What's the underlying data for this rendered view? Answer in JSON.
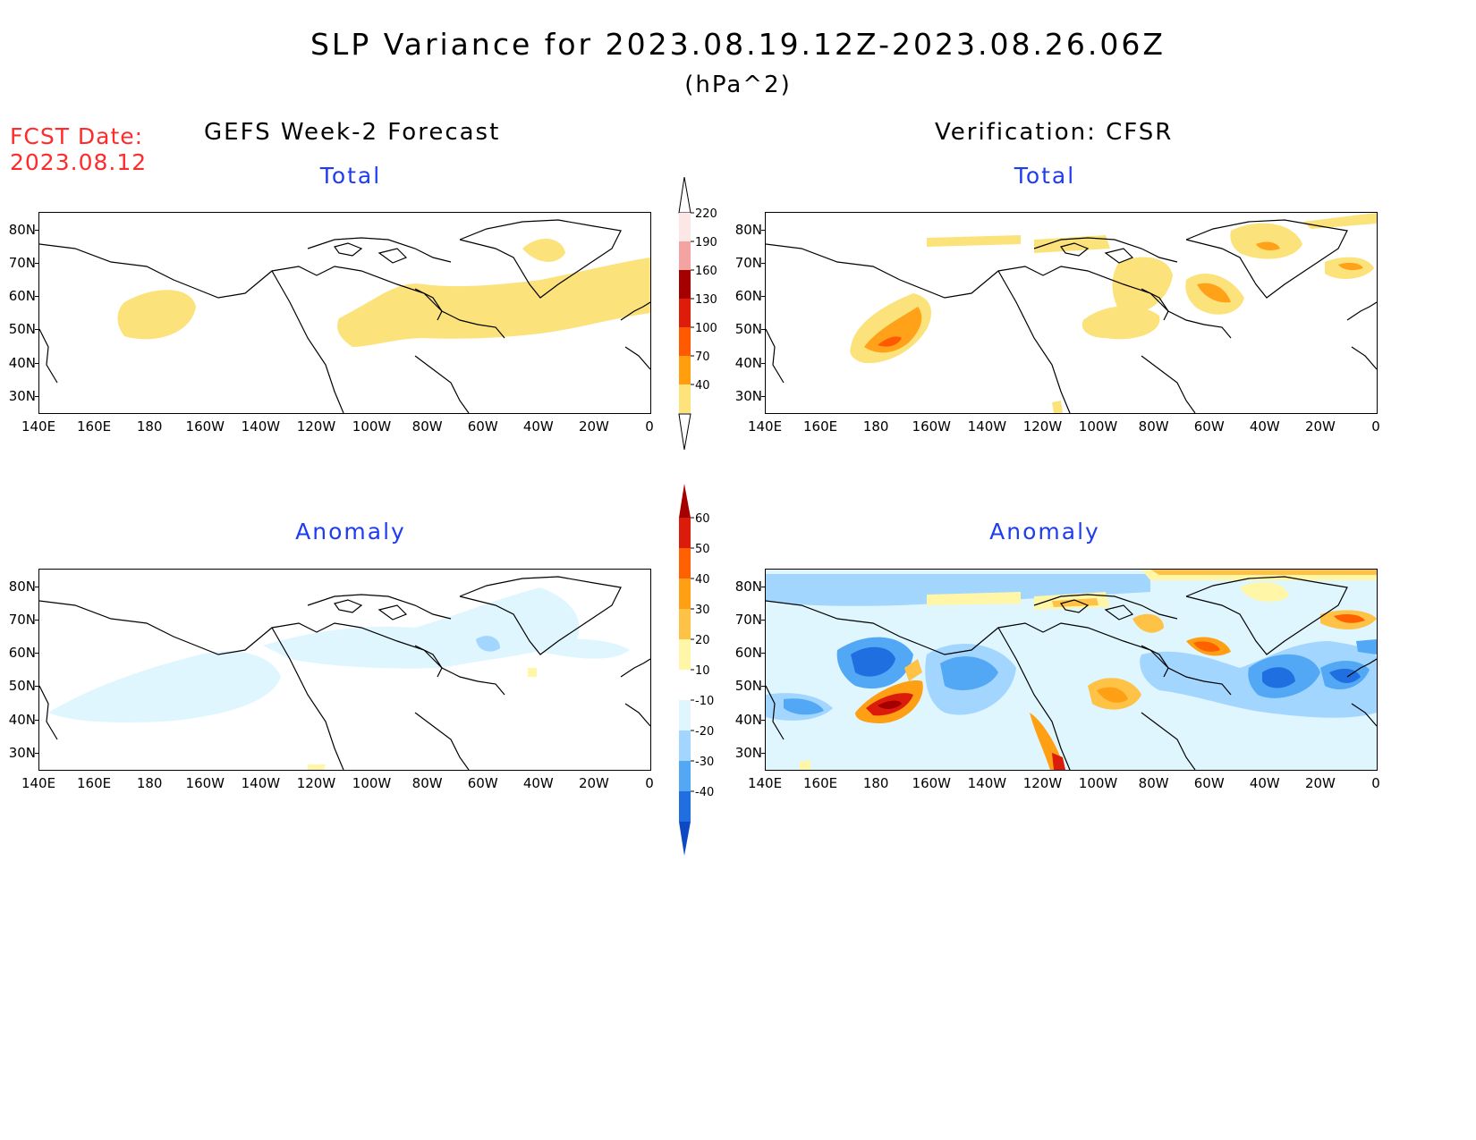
{
  "header": {
    "title": "SLP Variance for 2023.08.19.12Z-2023.08.26.06Z",
    "units": "(hPa^2)",
    "fcst_label": "FCST Date:",
    "fcst_date": "2023.08.12"
  },
  "columns": {
    "left_title": "GEFS Week-2 Forecast",
    "right_title": "Verification: CFSR"
  },
  "panels": {
    "total_label": "Total",
    "anomaly_label": "Anomaly"
  },
  "axes": {
    "lat_labels": [
      "80N",
      "70N",
      "60N",
      "50N",
      "40N",
      "30N"
    ],
    "lon_labels": [
      "140E",
      "160E",
      "180",
      "160W",
      "140W",
      "120W",
      "100W",
      "80W",
      "60W",
      "40W",
      "20W",
      "0"
    ]
  },
  "colorbars": {
    "total": {
      "labels": [
        "220",
        "190",
        "160",
        "130",
        "100",
        "70",
        "40"
      ],
      "colors": [
        "#fde6e6",
        "#f4a3a3",
        "#a40000",
        "#dd1c0a",
        "#ff5a00",
        "#ff9f0d",
        "#fde37a"
      ]
    },
    "anomaly": {
      "labels": [
        "60",
        "50",
        "40",
        "30",
        "20",
        "10",
        "-10",
        "-20",
        "-30",
        "-40"
      ],
      "colors": [
        "#a50000",
        "#dc1c0a",
        "#ff6000",
        "#ff9f14",
        "#fdc246",
        "#fff7a7",
        "#ffffff",
        "#e0f6ff",
        "#a3d6ff",
        "#52a8f5",
        "#1f6fe0",
        "#0d49c2"
      ]
    }
  }
}
